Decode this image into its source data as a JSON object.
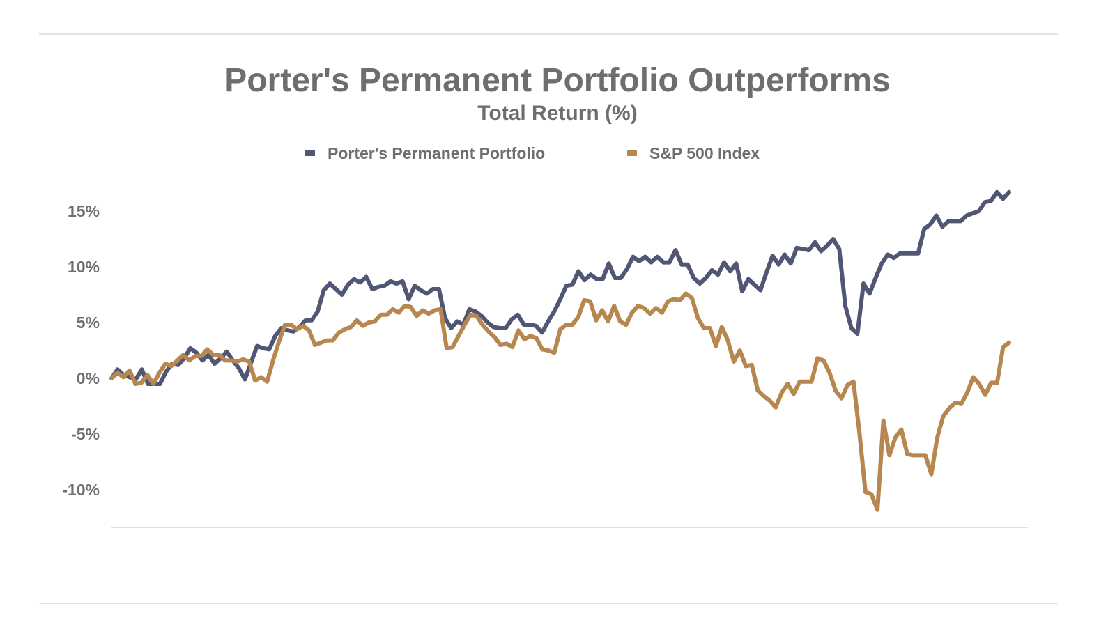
{
  "chart_data": {
    "type": "line",
    "title": "Porter's Permanent Portfolio Outperforms",
    "subtitle": "Total Return (%)",
    "ylim": [
      -13.5,
      17
    ],
    "yticks": [
      15,
      10,
      5,
      0,
      -5,
      -10
    ],
    "ytick_labels": [
      "15%",
      "10%",
      "5%",
      "0%",
      "-5%",
      "-10%"
    ],
    "grid": false,
    "legend_position": "top-center",
    "series": [
      {
        "name": "Porter's Permanent Portfolio",
        "color": "#525675",
        "values": [
          0.0,
          0.8,
          0.3,
          0.1,
          -0.1,
          0.8,
          -0.5,
          -0.5,
          -0.5,
          0.6,
          1.3,
          1.2,
          1.8,
          2.7,
          2.3,
          1.6,
          2.1,
          1.3,
          1.8,
          2.4,
          1.6,
          0.9,
          -0.1,
          1.4,
          2.9,
          2.7,
          2.6,
          3.8,
          4.5,
          4.3,
          4.2,
          4.6,
          5.2,
          5.2,
          6.0,
          7.9,
          8.5,
          8.0,
          7.5,
          8.4,
          8.9,
          8.6,
          9.1,
          8.0,
          8.2,
          8.3,
          8.7,
          8.5,
          8.7,
          7.1,
          8.3,
          7.9,
          7.6,
          8.0,
          8.0,
          5.4,
          4.5,
          5.1,
          4.8,
          6.2,
          6.0,
          5.6,
          5.0,
          4.6,
          4.5,
          4.5,
          5.3,
          5.7,
          4.8,
          4.8,
          4.7,
          4.1,
          5.1,
          6.0,
          7.1,
          8.3,
          8.4,
          9.6,
          8.8,
          9.3,
          8.9,
          8.9,
          10.3,
          9.0,
          9.0,
          9.8,
          10.9,
          10.5,
          10.9,
          10.4,
          10.9,
          10.4,
          10.4,
          11.5,
          10.2,
          10.2,
          9.0,
          8.5,
          9.0,
          9.7,
          9.3,
          10.4,
          9.6,
          10.3,
          7.8,
          8.9,
          8.4,
          7.9,
          9.5,
          11.0,
          10.2,
          11.1,
          10.3,
          11.7,
          11.6,
          11.5,
          12.2,
          11.4,
          11.9,
          12.5,
          11.6,
          6.5,
          4.5,
          4.0,
          8.5,
          7.6,
          9.0,
          10.3,
          11.1,
          10.8,
          11.2,
          11.2,
          11.2,
          11.2,
          13.4,
          13.8,
          14.6,
          13.6,
          14.1,
          14.1,
          14.1,
          14.6,
          14.8,
          15.0,
          15.8,
          15.9,
          16.7,
          16.1,
          16.7
        ]
      },
      {
        "name": "S&P 500 Index",
        "color": "#b8864f",
        "values": [
          0.0,
          0.5,
          0.1,
          0.7,
          -0.5,
          -0.4,
          0.3,
          -0.5,
          0.5,
          1.3,
          1.1,
          1.6,
          2.1,
          1.6,
          2.0,
          2.0,
          2.6,
          2.1,
          2.1,
          1.6,
          1.6,
          1.5,
          1.7,
          1.5,
          -0.2,
          0.1,
          -0.3,
          1.6,
          3.3,
          4.8,
          4.8,
          4.4,
          4.7,
          4.3,
          3.0,
          3.2,
          3.4,
          3.4,
          4.1,
          4.4,
          4.6,
          5.2,
          4.7,
          5.0,
          5.1,
          5.7,
          5.7,
          6.2,
          5.9,
          6.5,
          6.4,
          5.6,
          6.1,
          5.8,
          6.1,
          6.2,
          2.7,
          2.8,
          3.8,
          4.8,
          5.7,
          5.6,
          4.8,
          4.2,
          3.7,
          3.0,
          3.1,
          2.8,
          4.3,
          3.5,
          3.8,
          3.6,
          2.6,
          2.5,
          2.3,
          4.4,
          4.8,
          4.8,
          5.5,
          7.0,
          6.9,
          5.2,
          6.1,
          5.1,
          6.5,
          5.1,
          4.8,
          5.9,
          6.5,
          6.3,
          5.8,
          6.3,
          5.9,
          6.9,
          7.1,
          7.0,
          7.6,
          7.2,
          5.4,
          4.5,
          4.5,
          2.9,
          4.6,
          3.4,
          1.5,
          2.5,
          1.1,
          1.2,
          -1.1,
          -1.6,
          -2.0,
          -2.6,
          -1.3,
          -0.5,
          -1.4,
          -0.3,
          -0.3,
          -0.3,
          1.8,
          1.6,
          0.5,
          -1.1,
          -1.8,
          -0.6,
          -0.3,
          -4.9,
          -10.2,
          -10.4,
          -11.8,
          -3.8,
          -6.9,
          -5.3,
          -4.6,
          -6.8,
          -6.9,
          -6.9,
          -6.9,
          -8.6,
          -5.3,
          -3.4,
          -2.7,
          -2.2,
          -2.3,
          -1.3,
          0.1,
          -0.5,
          -1.5,
          -0.4,
          -0.4,
          2.8,
          3.2
        ]
      }
    ]
  }
}
